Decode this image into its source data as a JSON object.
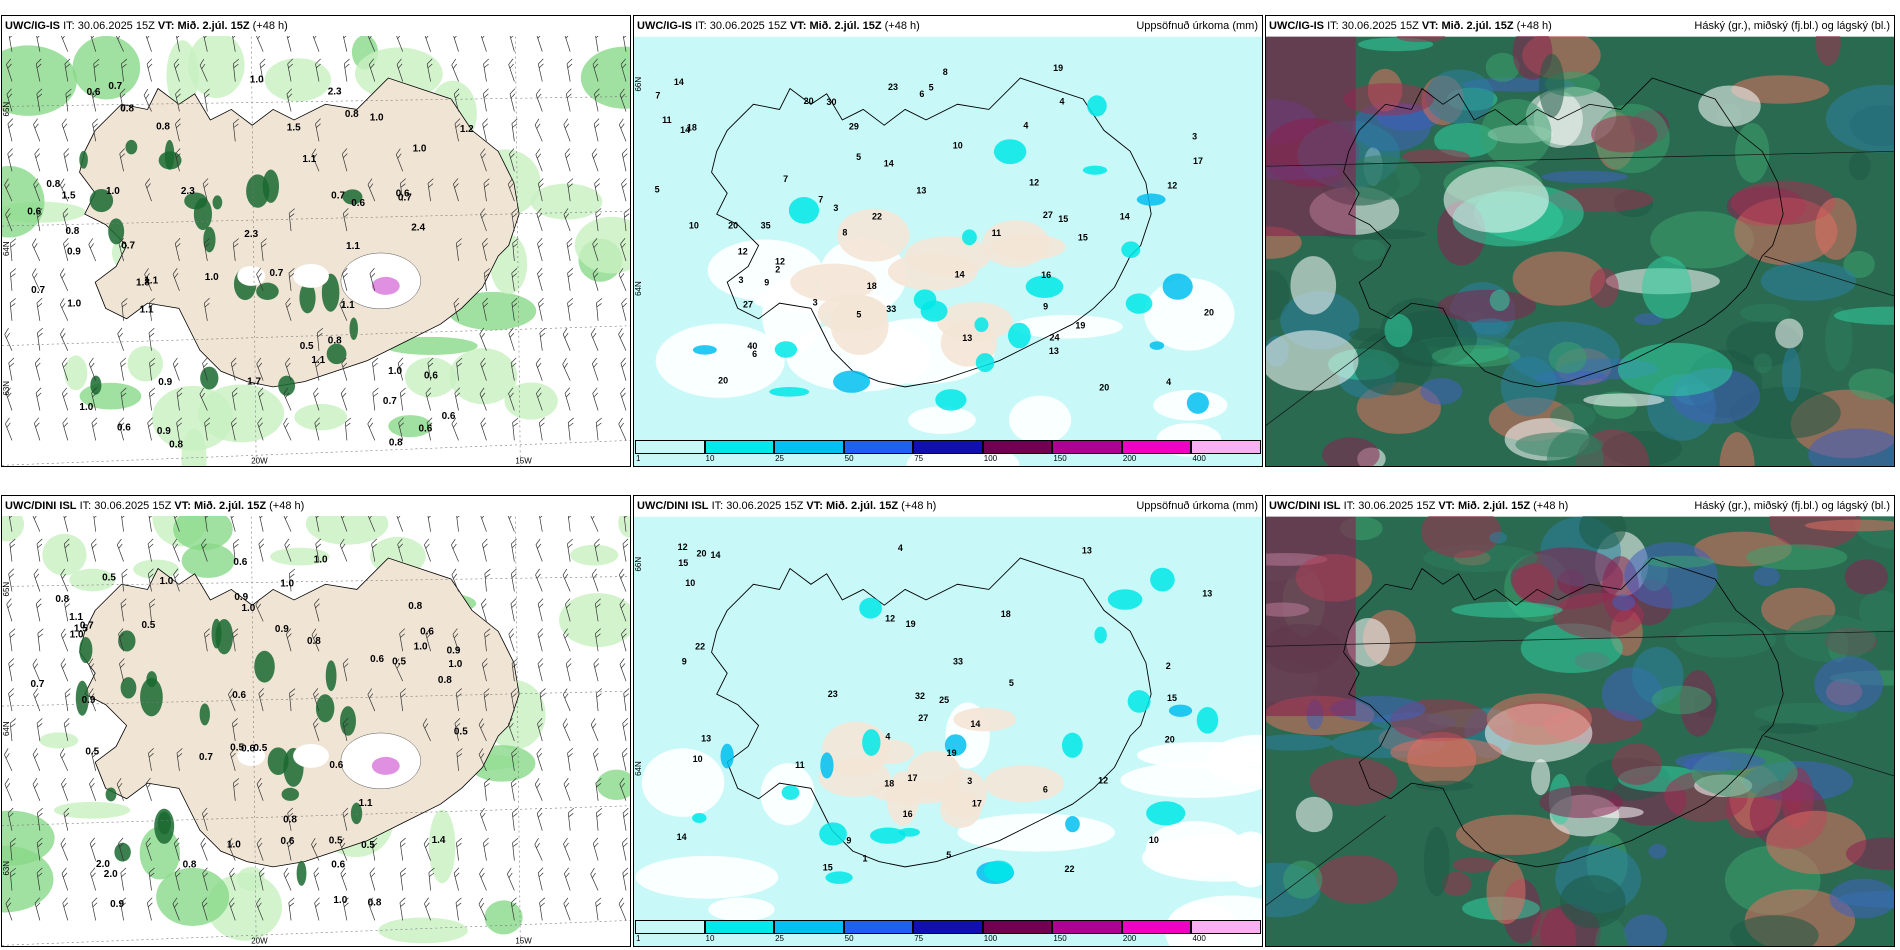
{
  "panels": [
    {
      "id": "p1",
      "model": "UWC/IG-IS",
      "it_label": "IT:",
      "it": "30.06.2025 15Z",
      "vt_label": "VT:",
      "vt": "Mið. 2.júl. 15Z",
      "lead": "(+48 h)",
      "legend_title": "",
      "kind": "cloud-wind",
      "lat_labels": [
        "65N",
        "64N",
        "63N"
      ],
      "lon_labels": [
        "20W",
        "15W"
      ],
      "values": [
        "0.6",
        "0.8",
        "0.9",
        "0.8",
        "1.0",
        "0.6",
        "0.6",
        "0.8",
        "0.7",
        "1.1",
        "0.6",
        "1.0",
        "0.6",
        "0.9",
        "1.1",
        "1.0",
        "1.5",
        "0.6",
        "1.1",
        "1.7",
        "1.0",
        "2.3",
        "0.7",
        "0.8",
        "1.0",
        "1.2",
        "0.5",
        "1.0",
        "1.1",
        "2.3",
        "1.0",
        "0.8",
        "1.8",
        "1.5",
        "0.7",
        "0.7",
        "0.9",
        "0.7",
        "1.1",
        "0.8",
        "1.1",
        "1.0",
        "0.7",
        "0.7",
        "0.8",
        "2.3",
        "0.6",
        "2.4",
        "0.8",
        "0.6"
      ]
    },
    {
      "id": "p2",
      "model": "UWC/IG-IS",
      "it_label": "IT:",
      "it": "30.06.2025 15Z",
      "vt_label": "VT:",
      "vt": "Mið. 2.júl. 15Z",
      "lead": "(+48 h)",
      "legend_title": "Uppsöfnuð úrkoma (mm)",
      "kind": "precip",
      "lat_labels": [
        "66N",
        "64N"
      ],
      "colorbar": {
        "ticks": [
          "1",
          "10",
          "25",
          "50",
          "75",
          "100",
          "150",
          "200",
          "400"
        ],
        "colors": [
          "#c8f8f8",
          "#00e8e8",
          "#00c0f0",
          "#2060f0",
          "#1010b0",
          "#700050",
          "#b00090",
          "#f000c0",
          "#f8b0f0"
        ]
      },
      "values": [
        "4",
        "5",
        "6",
        "3",
        "7",
        "6",
        "5",
        "4",
        "3",
        "5",
        "20",
        "14",
        "18",
        "14",
        "20",
        "22",
        "24",
        "13",
        "15",
        "12",
        "14",
        "19",
        "16",
        "14",
        "27",
        "12",
        "10",
        "7",
        "23",
        "14",
        "17",
        "20",
        "19",
        "12",
        "13",
        "8",
        "9",
        "11",
        "27",
        "20",
        "15",
        "11",
        "18",
        "29",
        "33",
        "30",
        "13",
        "9",
        "12",
        "40",
        "35",
        "20",
        "10",
        "7",
        "8",
        "4",
        "3",
        "2",
        "5",
        "3"
      ]
    },
    {
      "id": "p3",
      "model": "UWC/IG-IS",
      "it_label": "IT:",
      "it": "30.06.2025 15Z",
      "vt_label": "VT:",
      "vt": "Mið. 2.júl. 15Z",
      "lead": "(+48 h)",
      "legend_title": "Háský (gr.), miðský (fj.bl.) og lágský (bl.)",
      "kind": "clouds"
    },
    {
      "id": "p4",
      "model": "UWC/DINI ISL",
      "it_label": "IT:",
      "it": "30.06.2025 15Z",
      "vt_label": "VT:",
      "vt": "Mið. 2.júl. 15Z",
      "lead": "(+48 h)",
      "legend_title": "",
      "kind": "cloud-wind",
      "lat_labels": [
        "65N",
        "64N",
        "63N"
      ],
      "lon_labels": [
        "20W",
        "15W"
      ],
      "values": [
        "0.5",
        "0.9",
        "0.6",
        "0.6",
        "1.4",
        "0.7",
        "0.8",
        "1.0",
        "1.0",
        "0.6",
        "2.0",
        "0.8",
        "1.0",
        "0.5",
        "0.5",
        "0.7",
        "0.5",
        "1.0",
        "1.1",
        "1.5",
        "1.0",
        "2.0",
        "0.5",
        "0.9",
        "0.6",
        "0.6",
        "0.9",
        "0.8",
        "0.5",
        "0.8",
        "0.6",
        "0.5",
        "0.5",
        "0.8",
        "0.5",
        "0.8",
        "1.0",
        "1.1",
        "0.6",
        "0.7",
        "0.8",
        "1.0",
        "0.6",
        "0.9",
        "1.0",
        "0.9",
        "1.0"
      ]
    },
    {
      "id": "p5",
      "model": "UWC/DINI ISL",
      "it_label": "IT:",
      "it": "30.06.2025 15Z",
      "vt_label": "VT:",
      "vt": "Mið. 2.júl. 15Z",
      "lead": "(+48 h)",
      "legend_title": "Uppsöfnuð úrkoma (mm)",
      "kind": "precip",
      "lat_labels": [
        "66N",
        "64N"
      ],
      "colorbar": {
        "ticks": [
          "1",
          "10",
          "25",
          "50",
          "75",
          "100",
          "150",
          "200",
          "400"
        ],
        "colors": [
          "#c8f8f8",
          "#00e8e8",
          "#00c0f0",
          "#2060f0",
          "#1010b0",
          "#700050",
          "#b00090",
          "#f000c0",
          "#f8b0f0"
        ]
      },
      "values": [
        "2",
        "4",
        "6",
        "5",
        "14",
        "16",
        "17",
        "18",
        "22",
        "12",
        "10",
        "20",
        "18",
        "12",
        "15",
        "19",
        "27",
        "17",
        "13",
        "11",
        "9",
        "5",
        "32",
        "20",
        "25",
        "19",
        "13",
        "15",
        "33",
        "14",
        "14",
        "10",
        "13",
        "12",
        "9",
        "23",
        "15",
        "22",
        "10",
        "4",
        "3",
        "1"
      ]
    },
    {
      "id": "p6",
      "model": "UWC/DINI ISL",
      "it_label": "IT:",
      "it": "30.06.2025 15Z",
      "vt_label": "VT:",
      "vt": "Mið. 2.júl. 15Z",
      "lead": "(+48 h)",
      "legend_title": "Háský (gr.), miðský (fj.bl.) og lágský (bl.)",
      "kind": "clouds"
    }
  ]
}
